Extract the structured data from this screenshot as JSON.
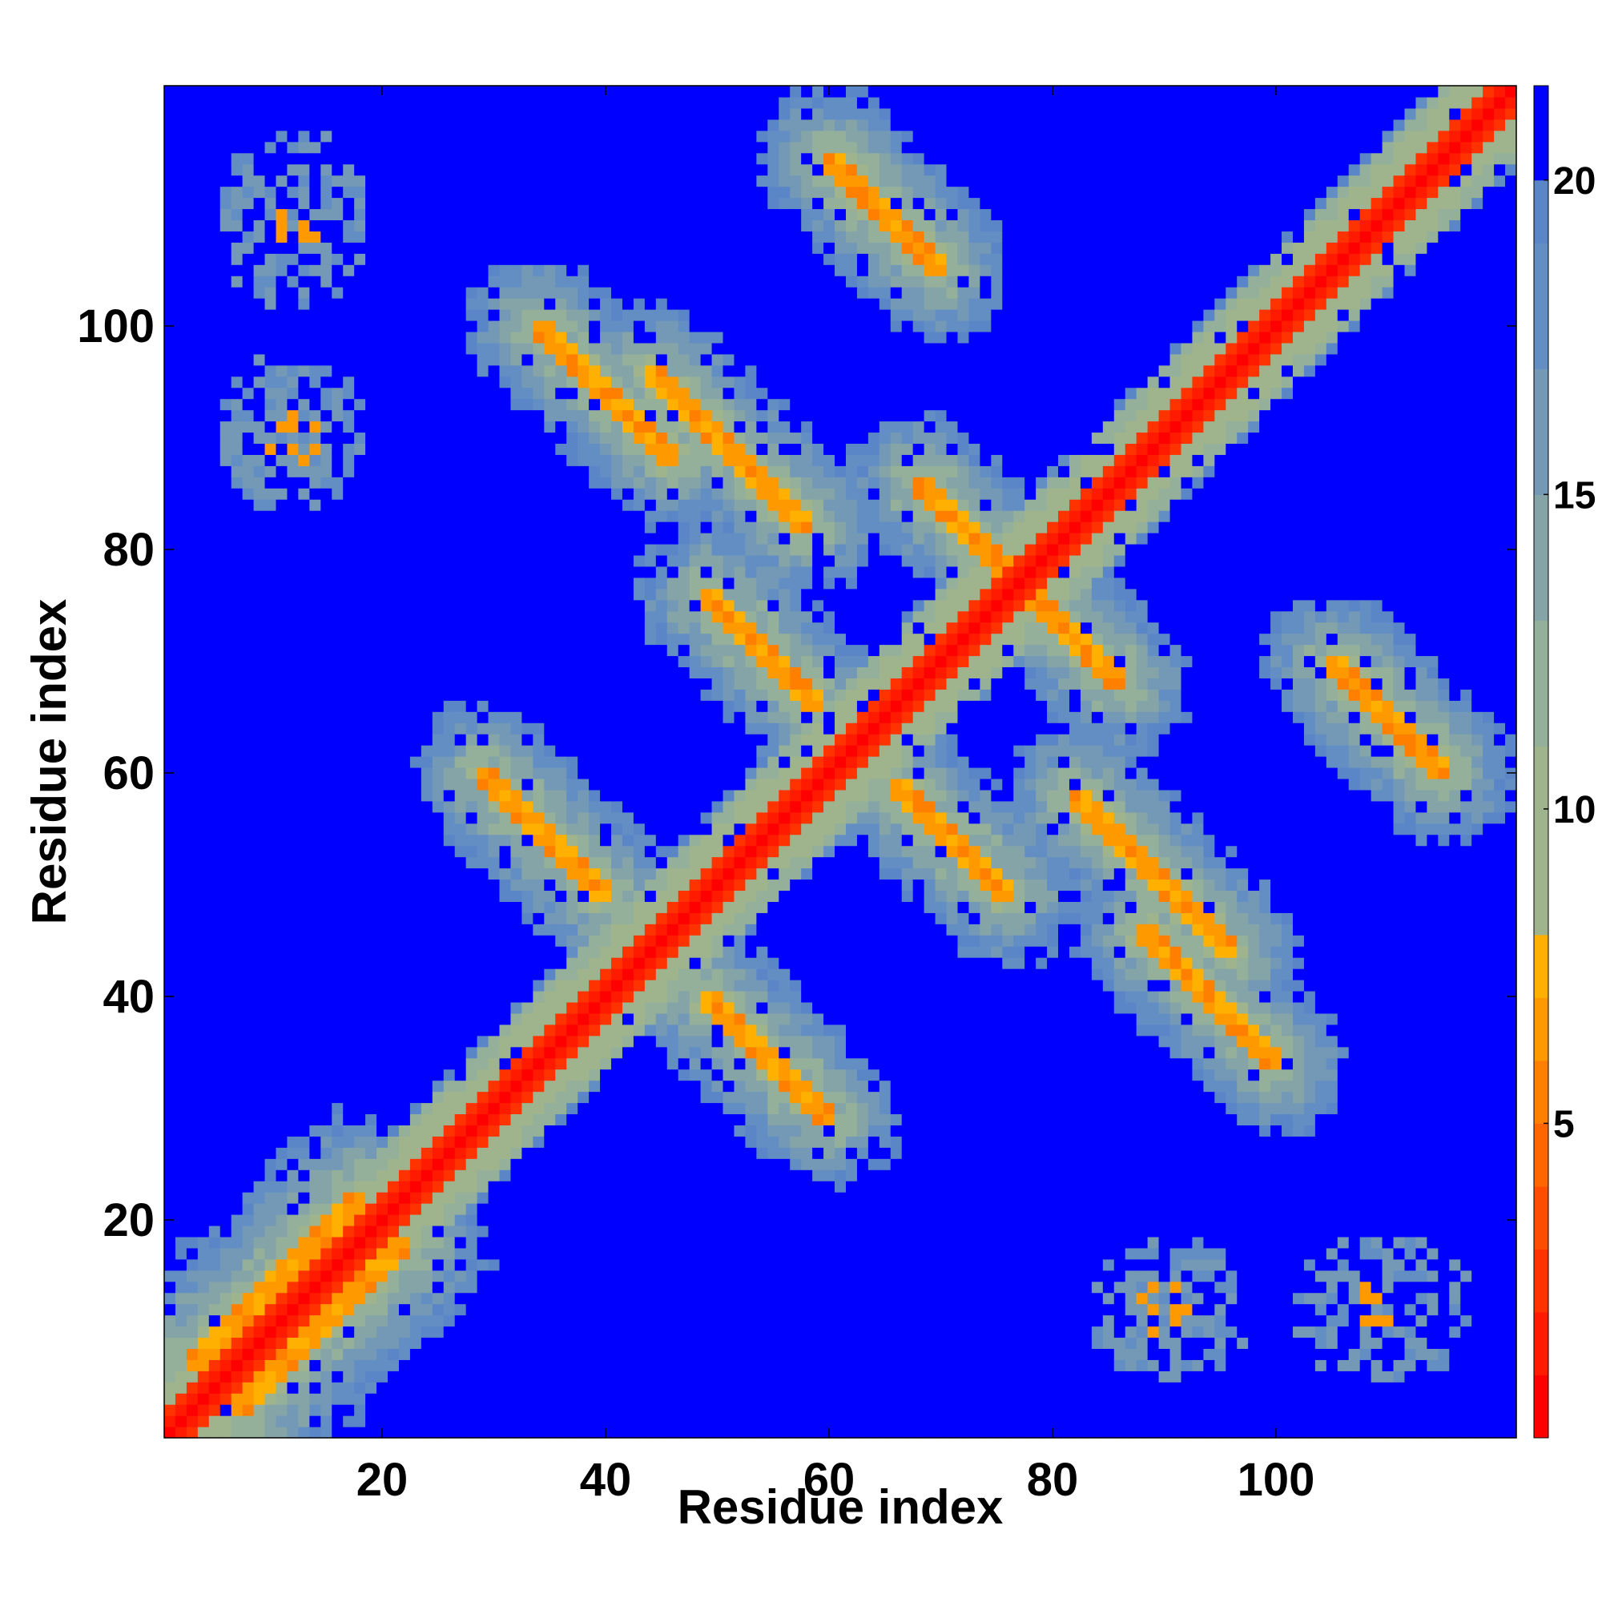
{
  "chart_data": {
    "type": "heatmap",
    "xlabel": "Residue index",
    "ylabel": "Residue index",
    "xlim": [
      0.5,
      121.5
    ],
    "ylim": [
      0.5,
      121.5
    ],
    "x_ticks": [
      20,
      40,
      60,
      80,
      100
    ],
    "y_ticks": [
      20,
      40,
      60,
      80,
      100
    ],
    "x_tick_labels": [
      "20",
      "40",
      "60",
      "80",
      "100"
    ],
    "y_tick_labels": [
      "20",
      "40",
      "60",
      "80",
      "100"
    ],
    "n_residues": 121,
    "value_range": [
      0,
      21.5
    ],
    "colorbar": {
      "ticks": [
        5,
        10,
        15,
        20
      ],
      "tick_labels": [
        "5",
        "10",
        "15",
        "20"
      ],
      "bins": [
        {
          "from": 0,
          "to": 1,
          "color": "#ff0000"
        },
        {
          "from": 1,
          "to": 2,
          "color": "#ff1a00"
        },
        {
          "from": 2,
          "to": 3,
          "color": "#ff3300"
        },
        {
          "from": 3,
          "to": 4,
          "color": "#ff4d00"
        },
        {
          "from": 4,
          "to": 5,
          "color": "#ff6600"
        },
        {
          "from": 5,
          "to": 6,
          "color": "#ff8000"
        },
        {
          "from": 6,
          "to": 7,
          "color": "#ff9900"
        },
        {
          "from": 7,
          "to": 8,
          "color": "#ffb000"
        },
        {
          "from": 8,
          "to": 11,
          "color": "#9fb48c"
        },
        {
          "from": 11,
          "to": 13,
          "color": "#94b09a"
        },
        {
          "from": 13,
          "to": 15,
          "color": "#84a4a8"
        },
        {
          "from": 15,
          "to": 17,
          "color": "#7399b6"
        },
        {
          "from": 17,
          "to": 19,
          "color": "#638ec4"
        },
        {
          "from": 19,
          "to": 20,
          "color": "#5a86c8"
        },
        {
          "from": 20,
          "to": 21.5,
          "color": "#0000ff"
        }
      ]
    },
    "structure": {
      "description_of_data": "Symmetric residue-residue distance map",
      "diagonal_band": {
        "from": 1,
        "to": 121
      },
      "antiparallel_contacts": [
        {
          "a": [
            29,
            40
          ],
          "b": [
            60,
            49
          ]
        },
        {
          "a": [
            44,
            58
          ],
          "b": [
            96,
            82
          ]
        },
        {
          "a": [
            60,
            70
          ],
          "b": [
            115,
            105
          ]
        },
        {
          "a": [
            66,
            76
          ],
          "b": [
            59,
            49
          ]
        },
        {
          "a": [
            74,
            86
          ],
          "b": [
            80,
            68
          ]
        },
        {
          "a": [
            88,
            100
          ],
          "b": [
            46,
            34
          ]
        },
        {
          "a": [
            106,
            114
          ],
          "b": [
            69,
            61
          ]
        }
      ],
      "parallel_contacts": [
        {
          "a": [
            3,
            18
          ],
          "offset": 4
        }
      ],
      "isolated_patches": [
        {
          "x": 12,
          "y": 111
        },
        {
          "x": 12,
          "y": 91
        },
        {
          "x": 90,
          "y": 12
        },
        {
          "x": 108,
          "y": 12
        }
      ]
    }
  }
}
